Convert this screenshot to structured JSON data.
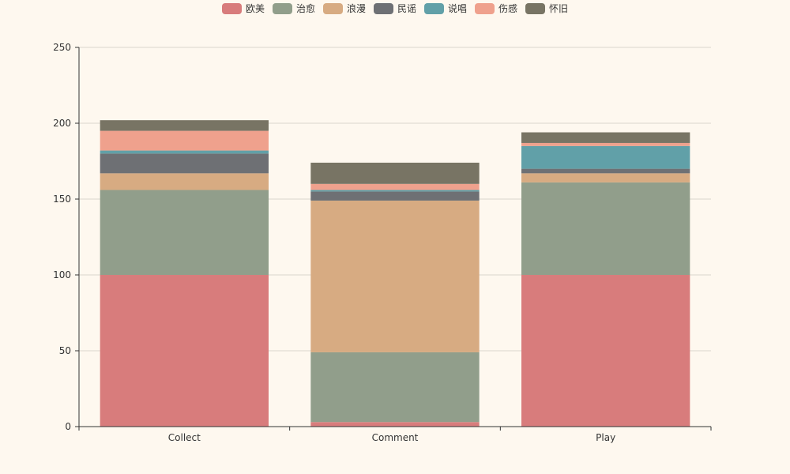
{
  "chart_data": {
    "type": "bar",
    "stacked": true,
    "categories": [
      "Collect",
      "Comment",
      "Play"
    ],
    "ylim": [
      0,
      250
    ],
    "yticks": [
      0,
      50,
      100,
      150,
      200,
      250
    ],
    "grid": true,
    "legend_position": "top-center",
    "series": [
      {
        "name": "欧美",
        "color": "#d87c7c",
        "values": [
          100,
          3,
          100
        ]
      },
      {
        "name": "治愈",
        "color": "#919e8b",
        "values": [
          56,
          46,
          61
        ]
      },
      {
        "name": "浪漫",
        "color": "#d7ab82",
        "values": [
          11,
          100,
          6
        ]
      },
      {
        "name": "民谣",
        "color": "#6e7074",
        "values": [
          13,
          6,
          3
        ]
      },
      {
        "name": "说唱",
        "color": "#61a0a8",
        "values": [
          2,
          1,
          15
        ]
      },
      {
        "name": "伤感",
        "color": "#efa18d",
        "values": [
          13,
          4,
          2
        ]
      },
      {
        "name": "怀旧",
        "color": "#787464",
        "values": [
          7,
          14,
          7
        ]
      }
    ]
  }
}
